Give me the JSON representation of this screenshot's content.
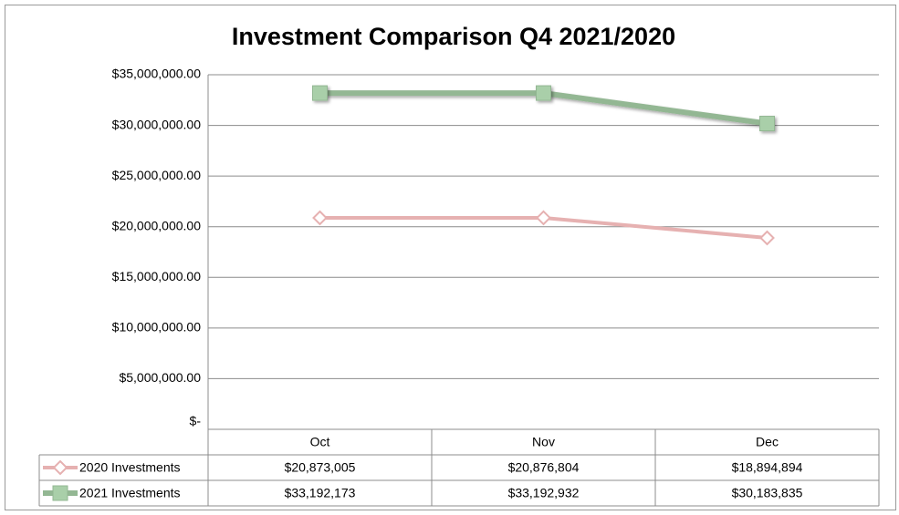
{
  "chart_data": {
    "type": "line",
    "title": "Investment Comparison  Q4 2021/2020",
    "categories": [
      "Oct",
      "Nov",
      "Dec"
    ],
    "series": [
      {
        "name": "2020 Investments",
        "color": "#e6b1b1",
        "marker": "diamond",
        "values": [
          20873005,
          20876804,
          18894894
        ],
        "value_labels": [
          "$20,873,005",
          "$20,876,804",
          "$18,894,894"
        ]
      },
      {
        "name": "2021 Investments",
        "color": "#93b793",
        "marker": "square",
        "values": [
          33192173,
          33192932,
          30183835
        ],
        "value_labels": [
          "$33,192,173",
          "$33,192,932",
          "$30,183,835"
        ]
      }
    ],
    "ylim": [
      0,
      35000000
    ],
    "yticks": [
      {
        "value": 0,
        "label": "$-"
      },
      {
        "value": 5000000,
        "label": "$5,000,000.00"
      },
      {
        "value": 10000000,
        "label": "$10,000,000.00"
      },
      {
        "value": 15000000,
        "label": "$15,000,000.00"
      },
      {
        "value": 20000000,
        "label": "$20,000,000.00"
      },
      {
        "value": 25000000,
        "label": "$25,000,000.00"
      },
      {
        "value": 30000000,
        "label": "$30,000,000.00"
      },
      {
        "value": 35000000,
        "label": "$35,000,000.00"
      }
    ],
    "grid": true
  }
}
